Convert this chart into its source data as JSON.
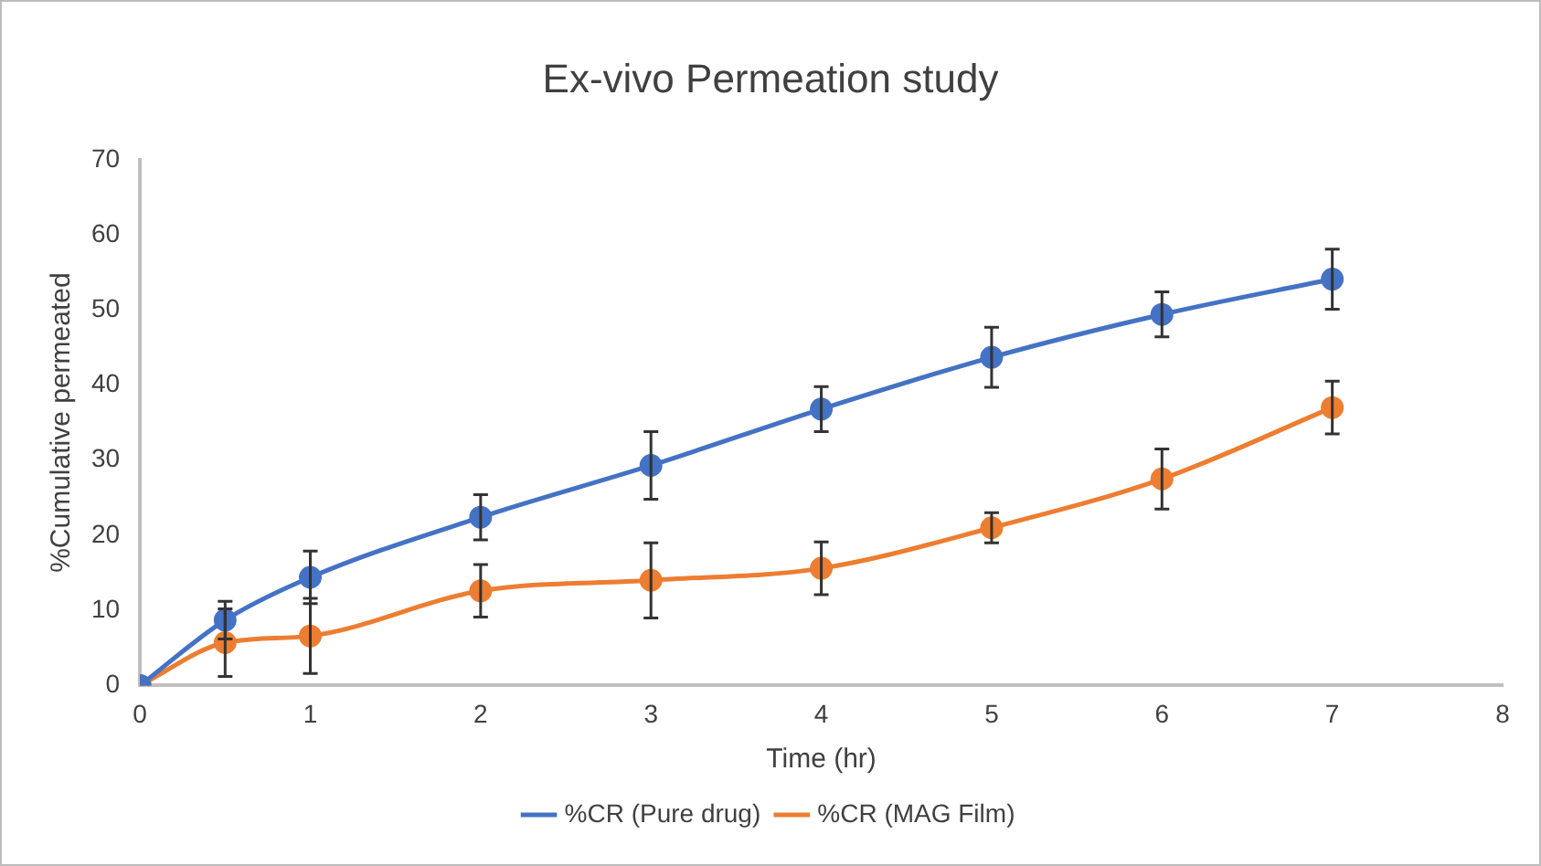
{
  "chart_data": {
    "type": "line",
    "title": "Ex-vivo Permeation study",
    "xlabel": "Time (hr)",
    "ylabel": "%Cumulative permeated",
    "x": [
      0,
      0.5,
      1,
      2,
      3,
      4,
      5,
      6,
      7
    ],
    "series": [
      {
        "name": "%CR (Pure drug)",
        "color": "#4472c4",
        "values": [
          0,
          8.7,
          14.4,
          22.4,
          29.3,
          36.8,
          43.7,
          49.4,
          54.1
        ],
        "errors": [
          null,
          2.5,
          3.5,
          3,
          4.5,
          3,
          4,
          3,
          4
        ]
      },
      {
        "name": "%CR (MAG Film)",
        "color": "#ed7d31",
        "values": [
          0,
          5.7,
          6.6,
          12.6,
          14,
          15.6,
          21,
          27.5,
          37
        ],
        "errors": [
          null,
          4.5,
          5,
          3.5,
          5,
          3.5,
          2,
          4,
          3.5
        ]
      }
    ],
    "xlim": [
      0,
      8
    ],
    "xticks": [
      0,
      1,
      2,
      3,
      4,
      5,
      6,
      7,
      8
    ],
    "ylim": [
      0,
      70
    ],
    "yticks": [
      0,
      10,
      20,
      30,
      40,
      50,
      60,
      70
    ],
    "grid": false,
    "legend": "bottom",
    "marker": "circle",
    "line_style": "solid"
  }
}
